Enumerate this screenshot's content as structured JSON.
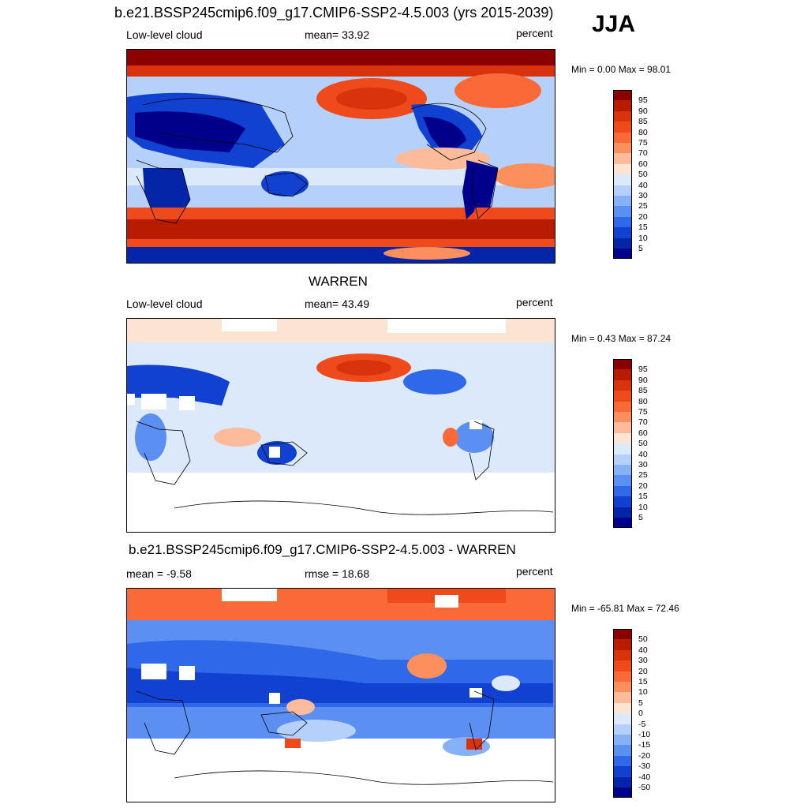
{
  "header": {
    "title": "b.e21.BSSP245cmip6.f09_g17.CMIP6-SSP2-4.5.003 (yrs 2015-2039)",
    "season": "JJA"
  },
  "panels": [
    {
      "title": "",
      "left_label": "Low-level cloud",
      "center_label": "mean=  33.92",
      "right_label": "percent",
      "minmax": "Min =   0.00 Max =  98.01"
    },
    {
      "title": "WARREN",
      "left_label": "Low-level cloud",
      "center_label": "mean=  43.49",
      "right_label": "percent",
      "minmax": "Min =   0.43 Max =  87.24"
    },
    {
      "title": "b.e21.BSSP245cmip6.f09_g17.CMIP6-SSP2-4.5.003 - WARREN",
      "left_label": "mean =  -9.58",
      "center_label": "rmse =  18.68",
      "right_label": "percent",
      "minmax": "Min = -65.81 Max =  72.46"
    }
  ],
  "colorbars": {
    "abs": {
      "labels": [
        "95",
        "90",
        "85",
        "80",
        "75",
        "70",
        "60",
        "50",
        "40",
        "30",
        "25",
        "20",
        "15",
        "10",
        "5"
      ],
      "colors": [
        "#8b0000",
        "#b71c00",
        "#d9330d",
        "#ee4a1c",
        "#f96a38",
        "#fb8f5e",
        "#fcbc9c",
        "#fde3d2",
        "#dbe9fb",
        "#b5d0fa",
        "#86b1f6",
        "#5b8ff1",
        "#3068ea",
        "#1041d0",
        "#0525a8",
        "#00008b"
      ]
    },
    "diff": {
      "labels": [
        "50",
        "40",
        "30",
        "20",
        "15",
        "10",
        "5",
        "0",
        "-5",
        "-10",
        "-15",
        "-20",
        "-30",
        "-40",
        "-50"
      ],
      "colors": [
        "#8b0000",
        "#b71c00",
        "#d9330d",
        "#ee4a1c",
        "#f96a38",
        "#fb8f5e",
        "#fcbc9c",
        "#fde3d2",
        "#dbe9fb",
        "#b5d0fa",
        "#86b1f6",
        "#5b8ff1",
        "#3068ea",
        "#1041d0",
        "#0525a8",
        "#00008b"
      ]
    }
  }
}
